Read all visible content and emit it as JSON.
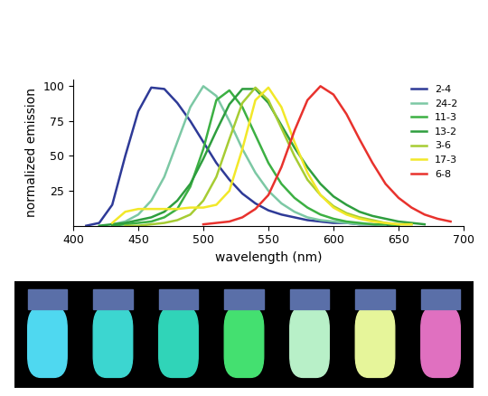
{
  "chart_data": {
    "type": "line",
    "x_label": "wavelength (nm)",
    "y_label": "normalized emission",
    "x": [
      400,
      410,
      420,
      430,
      440,
      450,
      460,
      470,
      480,
      490,
      500,
      510,
      520,
      530,
      540,
      550,
      560,
      570,
      580,
      590,
      600,
      610,
      620,
      630,
      640,
      650,
      660,
      670,
      680,
      690,
      700
    ],
    "series": [
      {
        "name": "2-4",
        "color": "#2e3a97",
        "values": [
          null,
          0,
          2,
          15,
          50,
          82,
          99,
          98,
          88,
          75,
          60,
          45,
          33,
          23,
          16,
          11,
          8,
          6,
          4,
          3,
          2,
          2,
          1,
          1,
          0,
          0,
          null,
          null,
          null,
          null,
          null
        ]
      },
      {
        "name": "24-2",
        "color": "#7cc8a4",
        "values": [
          null,
          null,
          null,
          1,
          3,
          8,
          18,
          35,
          60,
          85,
          100,
          93,
          75,
          55,
          38,
          25,
          16,
          10,
          6,
          4,
          3,
          2,
          1,
          1,
          0,
          null,
          null,
          null,
          null,
          null,
          null
        ]
      },
      {
        "name": "11-3",
        "color": "#3cb043",
        "values": [
          null,
          null,
          null,
          0,
          1,
          2,
          3,
          6,
          12,
          28,
          55,
          90,
          97,
          85,
          65,
          45,
          30,
          20,
          13,
          8,
          5,
          3,
          2,
          1,
          1,
          0,
          null,
          null,
          null,
          null,
          null
        ]
      },
      {
        "name": "13-2",
        "color": "#2e9e3e",
        "values": [
          null,
          null,
          0,
          1,
          2,
          4,
          6,
          10,
          18,
          30,
          48,
          68,
          87,
          98,
          98,
          88,
          72,
          56,
          42,
          30,
          21,
          15,
          10,
          7,
          5,
          3,
          2,
          1,
          null,
          null,
          null
        ]
      },
      {
        "name": "3-6",
        "color": "#a6cc33",
        "values": [
          null,
          null,
          null,
          null,
          0,
          0,
          1,
          2,
          4,
          8,
          18,
          35,
          62,
          88,
          99,
          90,
          70,
          50,
          33,
          22,
          14,
          9,
          6,
          4,
          2,
          1,
          1,
          null,
          null,
          null,
          null
        ]
      },
      {
        "name": "17-3",
        "color": "#f2e829",
        "values": [
          null,
          null,
          null,
          2,
          10,
          12,
          12,
          12,
          12,
          13,
          13,
          15,
          25,
          55,
          90,
          99,
          85,
          60,
          38,
          22,
          13,
          8,
          5,
          3,
          2,
          1,
          1,
          null,
          null,
          null,
          null
        ]
      },
      {
        "name": "6-8",
        "color": "#e8322d",
        "values": [
          null,
          null,
          null,
          null,
          null,
          null,
          null,
          null,
          null,
          null,
          1,
          2,
          3,
          6,
          12,
          22,
          42,
          68,
          90,
          100,
          94,
          80,
          62,
          45,
          30,
          20,
          13,
          8,
          5,
          3,
          null
        ]
      }
    ],
    "xlim": [
      400,
      700
    ],
    "xticks": [
      400,
      450,
      500,
      550,
      600,
      650,
      700
    ],
    "ylim": [
      0,
      105
    ],
    "yticks": [
      25,
      50,
      75,
      100
    ],
    "grid": false,
    "legend": "upper right"
  }
}
